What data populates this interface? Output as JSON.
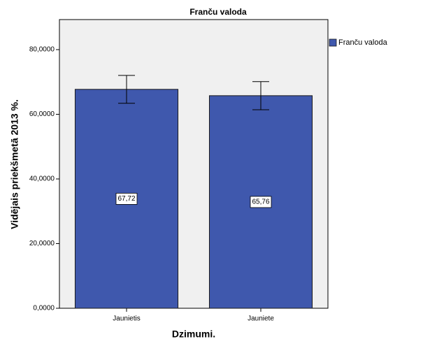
{
  "chart_data": {
    "type": "bar",
    "title": "Franču valoda",
    "x_label": "Dzimumi.",
    "y_label": "Vidējais priekšmetā 2013 %.",
    "categories": [
      "Jaunietis",
      "Jauniete"
    ],
    "series": [
      {
        "name": "Franču valoda",
        "color": "#3f58ad",
        "values": [
          67.72,
          65.76
        ],
        "value_labels": [
          "67,72",
          "65,76"
        ],
        "errors": [
          4.3,
          4.35
        ]
      }
    ],
    "ylim": [
      0,
      89.3
    ],
    "yticks": [
      {
        "value": 0,
        "label": "0,0000"
      },
      {
        "value": 20,
        "label": "20,0000"
      },
      {
        "value": 40,
        "label": "40,0000"
      },
      {
        "value": 60,
        "label": "60,0000"
      },
      {
        "value": 80,
        "label": "80,0000"
      }
    ],
    "legend": "right"
  }
}
